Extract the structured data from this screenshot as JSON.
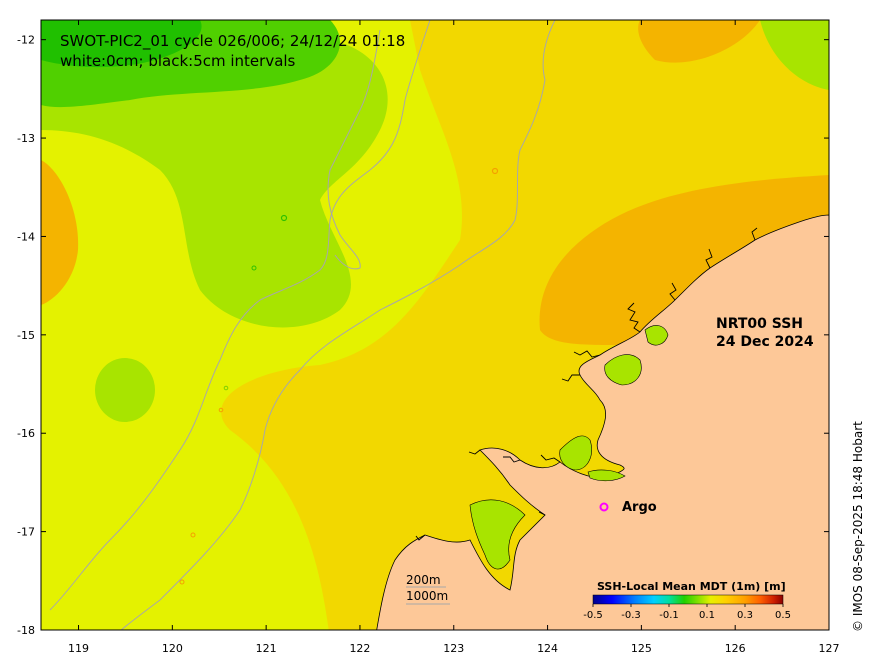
{
  "title": {
    "line1": "SWOT-PIC2_01 cycle 026/006; 24/12/24 01:18",
    "line2": "white:0cm; black:5cm intervals"
  },
  "product": {
    "line1": "NRT00 SSH",
    "line2": "24 Dec 2024"
  },
  "legend": {
    "argo_label": "Argo",
    "argo_color": "#ff00ff"
  },
  "depth_legend": {
    "contour1": "200m",
    "contour2": "1000m"
  },
  "colorbar": {
    "title": "SSH-Local Mean MDT (1m) [m]",
    "ticks": [
      "-0.5",
      "-0.3",
      "-0.1",
      "0.1",
      "0.3",
      "0.5"
    ],
    "range": [
      -0.5,
      0.5
    ],
    "colors": [
      "#00008b",
      "#0000ff",
      "#0080ff",
      "#00d0ff",
      "#00e0a0",
      "#20d000",
      "#80e000",
      "#e8f000",
      "#ffd000",
      "#ffa000",
      "#ff6000",
      "#d02000",
      "#8b0000"
    ]
  },
  "credit": "© IMOS 08-Sep-2025 18:48 Hobart",
  "axes": {
    "x_ticks": [
      "119",
      "120",
      "121",
      "122",
      "123",
      "124",
      "125",
      "126",
      "127"
    ],
    "y_ticks": [
      "-12",
      "-13",
      "-14",
      "-15",
      "-16",
      "-17",
      "-18"
    ],
    "xlim": [
      118.6,
      127
    ],
    "ylim": [
      -18,
      -11.8
    ]
  },
  "colors": {
    "land": "#fdc898",
    "sea_base": "#e4f200",
    "sea_warm": "#f2d800",
    "sea_hot": "#f4b400",
    "sea_cool": "#a8e400",
    "sea_cold": "#50d000",
    "sea_coldest": "#20c000",
    "bathymetry": "#a8a8a8",
    "coastline": "#000000"
  }
}
